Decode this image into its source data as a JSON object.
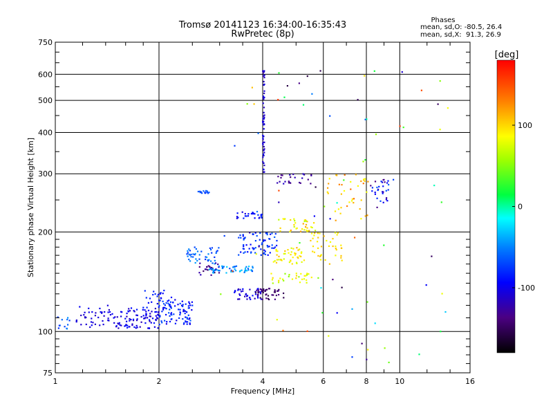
{
  "chart_data": {
    "type": "scatter",
    "title": "Tromsø 20141123 16:34:00-16:35:43",
    "subtitle": "RwPretec (8p)",
    "xlabel": "Frequency [MHz]",
    "ylabel": "Stationary phase Virtual Height [km]",
    "x_scale": "log",
    "y_scale": "log",
    "xlim": [
      1,
      16
    ],
    "ylim": [
      75,
      750
    ],
    "x_ticks": [
      {
        "value": 1,
        "label": "1"
      },
      {
        "value": 2,
        "label": "2"
      },
      {
        "value": 4,
        "label": "4"
      },
      {
        "value": 6,
        "label": "6"
      },
      {
        "value": 8,
        "label": "8"
      },
      {
        "value": 10,
        "label": "10"
      },
      {
        "value": 16,
        "label": "16"
      }
    ],
    "y_ticks": [
      {
        "value": 75,
        "label": "75"
      },
      {
        "value": 100,
        "label": "100"
      },
      {
        "value": 200,
        "label": "200"
      },
      {
        "value": 300,
        "label": "300"
      },
      {
        "value": 400,
        "label": "400"
      },
      {
        "value": 500,
        "label": "500"
      },
      {
        "value": 600,
        "label": "600"
      },
      {
        "value": 750,
        "label": "750"
      }
    ],
    "grid": true,
    "stats": {
      "heading": "Phases",
      "line_o": "mean, sd,O: -80.5, 26.4",
      "line_x": "mean, sd,X:  91.3, 26.9"
    },
    "colorbar": {
      "label": "[deg]",
      "range": [
        -180,
        180
      ],
      "ticks": [
        {
          "value": 100,
          "label": "100"
        },
        {
          "value": 0,
          "label": "0"
        },
        {
          "value": -100,
          "label": "-100"
        }
      ]
    },
    "clusters": [
      {
        "x": [
          1.0,
          1.1
        ],
        "y": [
          100,
          112
        ],
        "phase": [
          -40,
          -90
        ],
        "n": 12
      },
      {
        "x": [
          1.15,
          1.5
        ],
        "y": [
          103,
          120
        ],
        "phase": [
          -95,
          -115
        ],
        "n": 45
      },
      {
        "x": [
          1.5,
          2.0
        ],
        "y": [
          102,
          118
        ],
        "phase": [
          -85,
          -120
        ],
        "n": 90
      },
      {
        "x": [
          2.0,
          2.5
        ],
        "y": [
          105,
          125
        ],
        "phase": [
          -60,
          -105
        ],
        "n": 90
      },
      {
        "x": [
          1.8,
          2.2
        ],
        "y": [
          118,
          135
        ],
        "phase": [
          -80,
          -100
        ],
        "n": 25
      },
      {
        "x": [
          2.4,
          3.0
        ],
        "y": [
          160,
          180
        ],
        "phase": [
          -40,
          -80
        ],
        "n": 45
      },
      {
        "x": [
          2.6,
          3.0
        ],
        "y": [
          148,
          162
        ],
        "phase": [
          -110,
          -150
        ],
        "n": 25
      },
      {
        "x": [
          2.8,
          3.8
        ],
        "y": [
          150,
          158
        ],
        "phase": [
          -25,
          -70
        ],
        "n": 55
      },
      {
        "x": [
          2.6,
          2.8
        ],
        "y": [
          262,
          268
        ],
        "phase": [
          -60,
          -75
        ],
        "n": 14
      },
      {
        "x": [
          3.3,
          4.0
        ],
        "y": [
          125,
          135
        ],
        "phase": [
          -90,
          -120
        ],
        "n": 40
      },
      {
        "x": [
          3.8,
          4.6
        ],
        "y": [
          125,
          135
        ],
        "phase": [
          -130,
          -160
        ],
        "n": 40
      },
      {
        "x": [
          3.4,
          4.4
        ],
        "y": [
          170,
          200
        ],
        "phase": [
          -60,
          -100
        ],
        "n": 70
      },
      {
        "x": [
          3.3,
          4.0
        ],
        "y": [
          220,
          230
        ],
        "phase": [
          -80,
          -110
        ],
        "n": 25
      },
      {
        "x": [
          4.0,
          4.05
        ],
        "y": [
          300,
          620
        ],
        "phase": [
          -100,
          -120
        ],
        "n": 60
      },
      {
        "x": [
          4.3,
          5.3
        ],
        "y": [
          160,
          180
        ],
        "phase": [
          70,
          110
        ],
        "n": 45
      },
      {
        "x": [
          4.2,
          5.8
        ],
        "y": [
          140,
          150
        ],
        "phase": [
          50,
          100
        ],
        "n": 30
      },
      {
        "x": [
          4.4,
          5.6
        ],
        "y": [
          280,
          300
        ],
        "phase": [
          -110,
          -140
        ],
        "n": 25
      },
      {
        "x": [
          4.4,
          5.7
        ],
        "y": [
          200,
          220
        ],
        "phase": [
          60,
          120
        ],
        "n": 35
      },
      {
        "x": [
          5.5,
          6.8
        ],
        "y": [
          160,
          200
        ],
        "phase": [
          80,
          110
        ],
        "n": 40
      },
      {
        "x": [
          6.0,
          8.2
        ],
        "y": [
          210,
          300
        ],
        "phase": [
          80,
          140
        ],
        "n": 40
      },
      {
        "x": [
          8.2,
          9.3
        ],
        "y": [
          245,
          290
        ],
        "phase": [
          -60,
          -140
        ],
        "n": 30
      },
      {
        "x": [
          3.0,
          14.0
        ],
        "y": [
          80,
          650
        ],
        "phase": [
          -160,
          160
        ],
        "n": 80
      }
    ]
  }
}
